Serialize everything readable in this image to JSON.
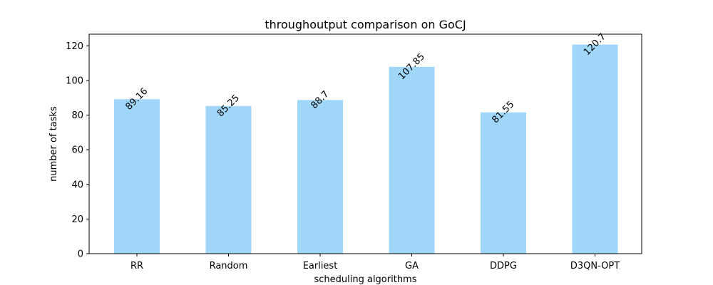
{
  "chart_data": {
    "type": "bar",
    "title": "throughoutput comparison on GoCJ",
    "xlabel": "scheduling algorithms",
    "ylabel": "number of tasks",
    "categories": [
      "RR",
      "Random",
      "Earliest",
      "GA",
      "DDPG",
      "D3QN-OPT"
    ],
    "values": [
      89.16,
      85.25,
      88.7,
      107.85,
      81.55,
      120.7
    ],
    "value_labels": [
      "89.16",
      "85.25",
      "88.7",
      "107.85",
      "81.55",
      "120.7"
    ],
    "ylim": [
      0,
      126.7
    ],
    "yticks": [
      0,
      20,
      40,
      60,
      80,
      100,
      120
    ],
    "grid": false,
    "legend": false,
    "colors": {
      "bar": "#a0d6f8",
      "axis": "#000000",
      "text": "#000000"
    }
  }
}
